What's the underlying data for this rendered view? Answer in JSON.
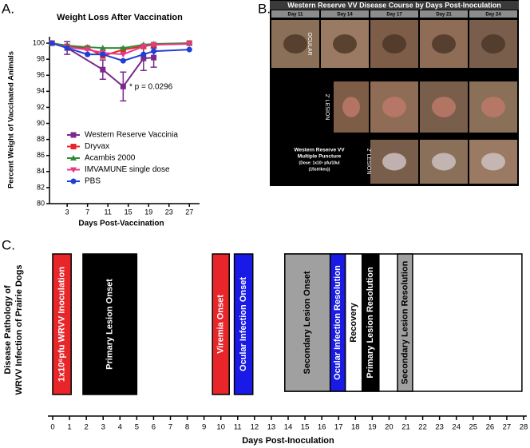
{
  "panel_labels": [
    "A.",
    "B.",
    "C."
  ],
  "chart_data": [
    {
      "type": "line",
      "title": "Weight Loss After Vaccination",
      "x_label": "Days Post-Vaccination",
      "y_label": "Percent Weight of Vaccinated Animals",
      "xlim": [
        0,
        29
      ],
      "xticks": [
        3,
        7,
        11,
        15,
        19,
        23,
        27
      ],
      "ylim": [
        80,
        100.8
      ],
      "yticks": [
        80,
        82,
        84,
        86,
        88,
        90,
        92,
        94,
        96,
        98,
        100
      ],
      "annotation": "* p = 0.0296",
      "series": [
        {
          "name": "Western Reserve Vaccinia",
          "color": "#7b2a8c",
          "marker": "square",
          "x": [
            0,
            3,
            10,
            14,
            18,
            20
          ],
          "values": [
            100,
            99.4,
            96.7,
            94.6,
            98.1,
            98.2
          ],
          "errors": [
            0.2,
            0.8,
            1.2,
            1.8,
            1.5,
            1.2
          ]
        },
        {
          "name": "Dryvax",
          "color": "#e8262a",
          "marker": "square",
          "x": [
            0,
            3,
            7,
            10,
            14,
            18,
            20,
            27
          ],
          "values": [
            100,
            99.6,
            99.4,
            98.4,
            99.2,
            99.6,
            99.8,
            100
          ]
        },
        {
          "name": "Acambis 2000",
          "color": "#2e8b3a",
          "marker": "triangle",
          "x": [
            0,
            3,
            7,
            10,
            14,
            18,
            20,
            27
          ],
          "values": [
            100,
            99.7,
            99.5,
            99.4,
            99.4,
            99.8,
            99.9,
            100
          ]
        },
        {
          "name": "IMVAMUNE single dose",
          "color": "#e8388a",
          "marker": "triangle-down",
          "x": [
            0,
            3,
            7,
            10,
            14,
            18,
            20,
            27
          ],
          "values": [
            100,
            99.5,
            99.2,
            98.8,
            98.6,
            99.6,
            99.8,
            99.9
          ]
        },
        {
          "name": "PBS",
          "color": "#1f3fd6",
          "marker": "circle",
          "x": [
            0,
            3,
            7,
            10,
            14,
            18,
            20,
            27
          ],
          "values": [
            100,
            99.4,
            98.6,
            98.6,
            97.8,
            98.6,
            99,
            99.2
          ]
        }
      ]
    },
    {
      "type": "timeline",
      "x_label": "Days Post-Inoculation",
      "y_label": [
        "Disease Pathology of",
        "WRVV Infection of Prairie Dogs"
      ],
      "xlim": [
        0,
        28
      ],
      "xticks": [
        0,
        1,
        2,
        3,
        4,
        5,
        6,
        7,
        8,
        9,
        10,
        11,
        12,
        13,
        14,
        15,
        16,
        17,
        18,
        19,
        20,
        21,
        22,
        23,
        24,
        25,
        26,
        27,
        28
      ],
      "outline": [
        13.8,
        27.9
      ],
      "bars": [
        {
          "label": "1x10⁶pfu WRVV Inoculation",
          "start": 0,
          "end": 1.1,
          "color": "#e8262a",
          "label_color": "#fff"
        },
        {
          "label": "Primary  Lesion Onset",
          "start": 1.8,
          "end": 5,
          "color": "#000",
          "label_color": "#fff"
        },
        {
          "label": "Viremia Onset",
          "start": 9.5,
          "end": 10.5,
          "color": "#e8262a",
          "label_color": "#fff"
        },
        {
          "label": "Ocular  Infection Onset",
          "start": 10.8,
          "end": 11.9,
          "color": "#1a1ae6",
          "label_color": "#fff"
        },
        {
          "label": "Secondary Lesion  Onset",
          "start": 13.8,
          "end": 16.5,
          "color": "#a0a0a0",
          "label_color": "#000"
        },
        {
          "label": "Ocular  Infection Resolution",
          "start": 16.5,
          "end": 17.4,
          "color": "#1a1ae6",
          "label_color": "#fff"
        },
        {
          "label": "Recovery",
          "start": 17.4,
          "end": 18.4,
          "color": "#fff",
          "label_color": "#000"
        },
        {
          "label": "Primary  Lesion  Resolution",
          "start": 18.4,
          "end": 19.4,
          "color": "#000",
          "label_color": "#fff"
        },
        {
          "label": "Secondary Lesion  Resolution",
          "start": 20.5,
          "end": 21.4,
          "color": "#a0a0a0",
          "label_color": "#000"
        }
      ]
    }
  ],
  "photo_panel": {
    "title": "Western Reserve VV Disease Course by Days Post-Inoculation",
    "columns": [
      "Day 11",
      "Day 14",
      "Day 17",
      "Day 21",
      "Day 24"
    ],
    "row_labels": [
      "OCULAR",
      "2' LESION",
      "2' LESION"
    ],
    "group_label": [
      "Western Reserve VV",
      "Multiple Puncture",
      "(Dose: 1x10⁶ pfu/10ul",
      "(15strikes))"
    ]
  }
}
